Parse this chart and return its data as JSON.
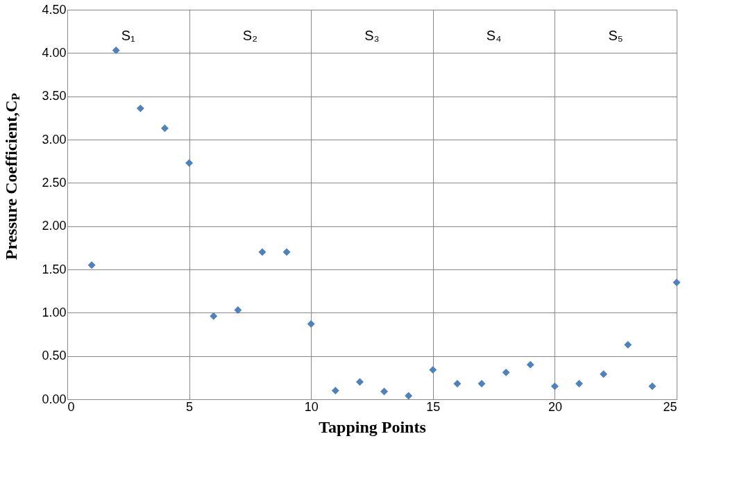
{
  "chart_data": {
    "type": "scatter",
    "xlabel": "Tapping Points",
    "ylabel": "Pressure Coefficient,C$_{P}$",
    "x": [
      1,
      2,
      3,
      4,
      5,
      6,
      7,
      8,
      9,
      10,
      11,
      12,
      13,
      14,
      15,
      16,
      17,
      18,
      19,
      20,
      21,
      22,
      23,
      24,
      25
    ],
    "series": [
      {
        "color": "#4f81bd",
        "values": [
          1.55,
          4.03,
          3.36,
          3.13,
          2.73,
          0.96,
          1.03,
          1.7,
          1.7,
          0.87,
          0.1,
          0.2,
          0.09,
          0.04,
          0.34,
          0.18,
          0.18,
          0.31,
          0.4,
          0.15,
          0.18,
          0.29,
          0.63,
          0.15,
          1.35
        ]
      }
    ],
    "xlim": [
      0,
      25
    ],
    "xticks": [
      0,
      5,
      10,
      15,
      20,
      25
    ],
    "ylim": [
      0,
      4.5
    ],
    "yticks": [
      {
        "value": 0,
        "label": "0.00"
      },
      {
        "value": 0.5,
        "label": "0.50"
      },
      {
        "value": 1,
        "label": "1.00"
      },
      {
        "value": 1.5,
        "label": "1.50"
      },
      {
        "value": 2,
        "label": "2.00"
      },
      {
        "value": 2.5,
        "label": "2.50"
      },
      {
        "value": 3,
        "label": "3.00"
      },
      {
        "value": 3.5,
        "label": "3.50"
      },
      {
        "value": 4,
        "label": "4.00"
      },
      {
        "value": 4.5,
        "label": "4.50"
      }
    ],
    "annotations": [
      "S₁",
      "S₂",
      "S₃",
      "S₄",
      "S₅"
    ],
    "grid": true,
    "marker": "diamond",
    "legend": false
  }
}
